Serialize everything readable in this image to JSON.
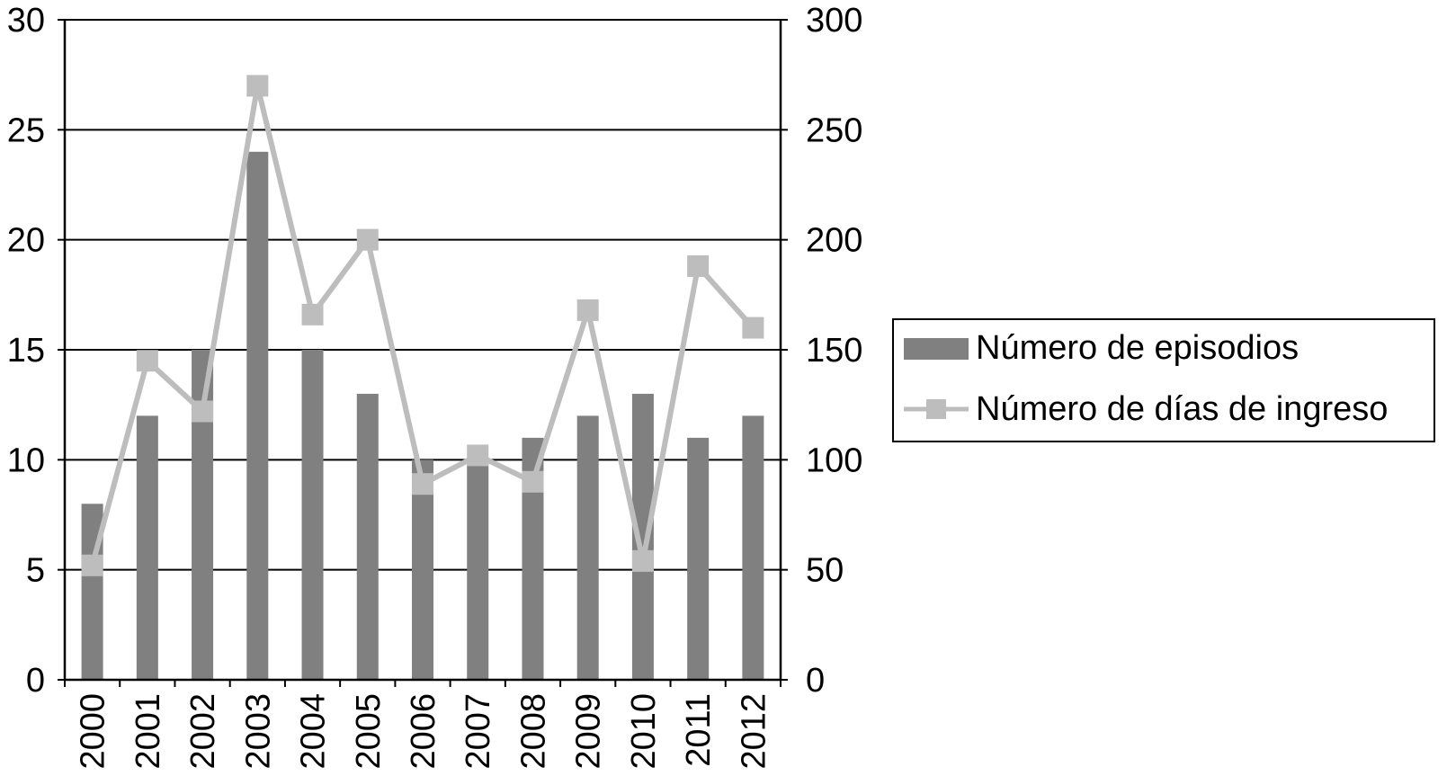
{
  "chart_data": {
    "type": "bar",
    "title": "",
    "xlabel": "",
    "ylabel": "",
    "categories": [
      "2000",
      "2001",
      "2002",
      "2003",
      "2004",
      "2005",
      "2006",
      "2007",
      "2008",
      "2009",
      "2010",
      "2011",
      "2012"
    ],
    "series": [
      {
        "name": "Número de episodios",
        "type": "bar",
        "axis": "left",
        "color": "#808080",
        "values": [
          8,
          12,
          15,
          24,
          15,
          13,
          10,
          10,
          11,
          12,
          13,
          11,
          12
        ]
      },
      {
        "name": "Número de días de ingreso",
        "type": "line",
        "axis": "right",
        "color": "#bdbdbd",
        "marker": "square",
        "values": [
          52,
          145,
          122,
          270,
          166,
          200,
          89,
          102,
          90,
          168,
          54,
          188,
          160
        ]
      }
    ],
    "ylim": [
      0,
      30
    ],
    "y2lim": [
      0,
      300
    ],
    "yticks": [
      "0",
      "5",
      "10",
      "15",
      "20",
      "25",
      "30"
    ],
    "y2ticks": [
      "0",
      "50",
      "100",
      "150",
      "200",
      "250",
      "300"
    ],
    "grid": true,
    "legend_position": "right"
  }
}
